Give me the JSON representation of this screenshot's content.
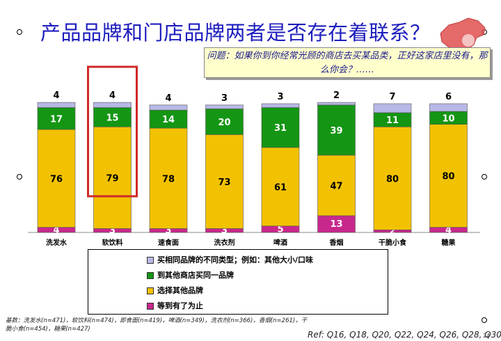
{
  "title": "产品品牌和门店品牌两者是否存在着联系？",
  "question": "问题：如果你到你经常光顾的商店去买某品类，正好这家店里没有，那么你会？……",
  "colors": {
    "lavender": "#b8b8e6",
    "green": "#149614",
    "yellow": "#f2c200",
    "magenta": "#c8288c",
    "highlight": "#d02828",
    "title": "#1d1dbe"
  },
  "chart_data": {
    "type": "bar",
    "stacked": true,
    "categories": [
      "洗发水",
      "软饮料",
      "速食面",
      "洗衣剂",
      "啤酒",
      "香烟",
      "干脆小食",
      "糖果"
    ],
    "series": [
      {
        "name": "等到有了为止",
        "color": "#c8288c",
        "values": [
          4,
          3,
          3,
          3,
          5,
          13,
          2,
          4
        ]
      },
      {
        "name": "选择其他品牌",
        "color": "#f2c200",
        "values": [
          76,
          79,
          78,
          73,
          61,
          47,
          80,
          80
        ]
      },
      {
        "name": "到其他商店买同一品牌",
        "color": "#149614",
        "values": [
          17,
          15,
          14,
          20,
          31,
          39,
          11,
          10
        ]
      },
      {
        "name": "买相同品牌的不同类型；例如：其他大小/口味",
        "color": "#b8b8e6",
        "values": [
          4,
          4,
          4,
          3,
          3,
          2,
          7,
          6
        ]
      }
    ],
    "highlight_category": "软饮料",
    "ylim": [
      0,
      100
    ],
    "legend": "bottom",
    "grid": false
  },
  "legend_items": [
    {
      "label": "买相同品牌的不同类型；例如：其他大小/口味",
      "color": "#b8b8e6"
    },
    {
      "label": "到其他商店买同一品牌",
      "color": "#149614"
    },
    {
      "label": "选择其他品牌",
      "color": "#f2c200"
    },
    {
      "label": "等到有了为止",
      "color": "#c8288c"
    }
  ],
  "base_note": "基数：洗发水(n=471)，软饮料(n=474)，即食面(n=419)，啤酒(n=349)，洗衣剂(n=366)，香烟(n=261)，干脆小食(n=454)，糖果(n=427)",
  "reference": "Ref: Q16, Q18, Q20, Q22, Q24, Q26, Q28, Q30",
  "page_number": "24"
}
